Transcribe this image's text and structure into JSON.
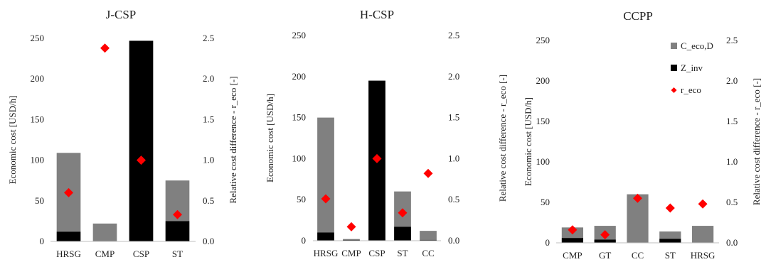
{
  "legend": [
    {
      "name": "C_eco,D",
      "color": "#808080",
      "marker": "square"
    },
    {
      "name": "Z_inv",
      "color": "#000000",
      "marker": "square"
    },
    {
      "name": "r_eco",
      "color": "#ff0000",
      "marker": "diamond"
    }
  ],
  "chart_data": [
    {
      "type": "bar",
      "stacked": true,
      "title": "J-CSP",
      "categories": [
        "HRSG",
        "CMP",
        "CSP",
        "ST"
      ],
      "series": [
        {
          "name": "Z_inv",
          "color": "#000000",
          "values": [
            12,
            0,
            247,
            25
          ]
        },
        {
          "name": "C_eco,D",
          "color": "#808080",
          "values": [
            97,
            22,
            0,
            50
          ]
        },
        {
          "name": "r_eco",
          "color": "#ff0000",
          "axis": "right",
          "kind": "scatter",
          "values": [
            0.6,
            2.38,
            1.0,
            0.33
          ]
        }
      ],
      "ylabel": "Economic cost [USD/h]",
      "ylabel_right": "Relative cost difference - r_eco [-]",
      "ylim": [
        0,
        250
      ],
      "ylim_right": [
        0,
        2.5
      ],
      "yticks": [
        "0",
        "50",
        "100",
        "150",
        "200",
        "250"
      ],
      "yticks_right": [
        "0.0",
        "0.5",
        "1.0",
        "1.5",
        "2.0",
        "2.5"
      ],
      "legend": false
    },
    {
      "type": "bar",
      "stacked": true,
      "title": "H-CSP",
      "categories": [
        "HRSG",
        "CMP",
        "CSP",
        "ST",
        "CC"
      ],
      "series": [
        {
          "name": "Z_inv",
          "color": "#000000",
          "values": [
            10,
            1,
            195,
            17,
            1
          ]
        },
        {
          "name": "C_eco,D",
          "color": "#808080",
          "values": [
            140,
            1,
            0,
            43,
            11
          ]
        },
        {
          "name": "r_eco",
          "color": "#ff0000",
          "axis": "right",
          "kind": "scatter",
          "values": [
            0.51,
            0.17,
            1.0,
            0.34,
            0.82
          ]
        }
      ],
      "ylabel": "Economic cost [USD/h]",
      "ylabel_right": "Relative cost difference - r_eco [-]",
      "ylim": [
        0,
        250
      ],
      "ylim_right": [
        0,
        2.5
      ],
      "yticks": [
        "0",
        "50",
        "100",
        "150",
        "200",
        "250"
      ],
      "yticks_right": [
        "0.0",
        "0.5",
        "1.0",
        "1.5",
        "2.0",
        "2.5"
      ],
      "legend": false
    },
    {
      "type": "bar",
      "stacked": true,
      "title": "CCPP",
      "categories": [
        "CMP",
        "GT",
        "CC",
        "ST",
        "HRSG"
      ],
      "series": [
        {
          "name": "Z_inv",
          "color": "#000000",
          "values": [
            6,
            4,
            0,
            5,
            0
          ]
        },
        {
          "name": "C_eco,D",
          "color": "#808080",
          "values": [
            13,
            17,
            60,
            9,
            21
          ]
        },
        {
          "name": "r_eco",
          "color": "#ff0000",
          "axis": "right",
          "kind": "scatter",
          "values": [
            0.16,
            0.1,
            0.55,
            0.43,
            0.48
          ]
        }
      ],
      "ylabel": "Economic cost [USD/h]",
      "ylabel_right": "Relative cost difference - r_eco [-]",
      "ylim": [
        0,
        250
      ],
      "ylim_right": [
        0,
        2.5
      ],
      "yticks": [
        "0",
        "50",
        "100",
        "150",
        "200",
        "250"
      ],
      "yticks_right": [
        "0.0",
        "0.5",
        "1.0",
        "1.5",
        "2.0",
        "2.5"
      ],
      "legend": true,
      "legend_position": "top-right"
    }
  ]
}
